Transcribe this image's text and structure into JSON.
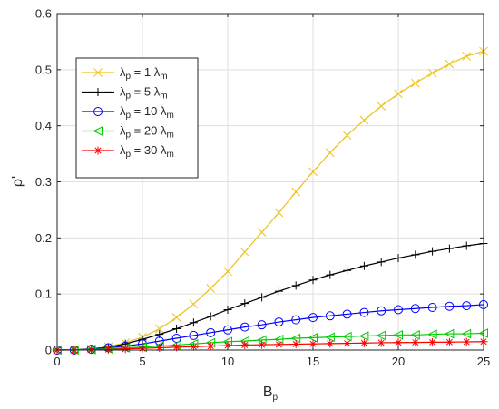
{
  "chart_data": {
    "type": "line",
    "xlabel": "B",
    "xlabel_sub": "p",
    "ylabel": "ρ'",
    "xlim": [
      0,
      25
    ],
    "ylim": [
      0,
      0.6
    ],
    "xticks": [
      0,
      5,
      10,
      15,
      20,
      25
    ],
    "xtick_labels": [
      "0",
      "5",
      "10",
      "15",
      "20",
      "25"
    ],
    "yticks": [
      0,
      0.1,
      0.2,
      0.3,
      0.4,
      0.5,
      0.6
    ],
    "ytick_labels": [
      "0",
      "0.1",
      "0.2",
      "0.3",
      "0.4",
      "0.5",
      "0.6"
    ],
    "grid": true,
    "legend_position": "upper-left",
    "x": [
      0,
      1,
      2,
      3,
      4,
      5,
      6,
      7,
      8,
      9,
      10,
      11,
      12,
      13,
      14,
      15,
      16,
      17,
      18,
      19,
      20,
      21,
      22,
      23,
      24,
      25
    ],
    "series": [
      {
        "name": "λp = 1 λm",
        "legend_parts": {
          "a": "λ",
          "a_sub": "p",
          "mid": " = 1 λ",
          "b_sub": "m"
        },
        "color": "#EDC11A",
        "marker": "x",
        "values": [
          0.0,
          0.0005,
          0.002,
          0.006,
          0.013,
          0.023,
          0.038,
          0.058,
          0.082,
          0.11,
          0.14,
          0.175,
          0.21,
          0.245,
          0.282,
          0.318,
          0.352,
          0.383,
          0.41,
          0.435,
          0.457,
          0.476,
          0.494,
          0.51,
          0.524,
          0.533
        ]
      },
      {
        "name": "λp = 5 λm",
        "legend_parts": {
          "a": "λ",
          "a_sub": "p",
          "mid": " = 5 λ",
          "b_sub": "m"
        },
        "color": "#000000",
        "marker": "+",
        "values": [
          0.0,
          0.0004,
          0.002,
          0.005,
          0.011,
          0.019,
          0.028,
          0.038,
          0.049,
          0.06,
          0.072,
          0.083,
          0.094,
          0.105,
          0.115,
          0.125,
          0.134,
          0.142,
          0.15,
          0.157,
          0.164,
          0.17,
          0.176,
          0.181,
          0.186,
          0.19
        ]
      },
      {
        "name": "λp = 10 λm",
        "legend_parts": {
          "a": "λ",
          "a_sub": "p",
          "mid": " = 10 λ",
          "b_sub": "m"
        },
        "color": "#0000FF",
        "marker": "o",
        "values": [
          0.0,
          0.0003,
          0.0015,
          0.004,
          0.007,
          0.011,
          0.016,
          0.021,
          0.026,
          0.031,
          0.036,
          0.041,
          0.045,
          0.05,
          0.054,
          0.058,
          0.061,
          0.064,
          0.067,
          0.07,
          0.072,
          0.074,
          0.076,
          0.078,
          0.079,
          0.081
        ]
      },
      {
        "name": "λp = 20 λm",
        "legend_parts": {
          "a": "λ",
          "a_sub": "p",
          "mid": " = 20 λ",
          "b_sub": "m"
        },
        "color": "#00CC00",
        "marker": "<",
        "values": [
          0.0,
          0.0002,
          0.001,
          0.002,
          0.004,
          0.005,
          0.007,
          0.009,
          0.011,
          0.013,
          0.015,
          0.016,
          0.018,
          0.019,
          0.021,
          0.022,
          0.023,
          0.024,
          0.025,
          0.026,
          0.027,
          0.027,
          0.028,
          0.029,
          0.029,
          0.03
        ]
      },
      {
        "name": "λp = 30 λm",
        "legend_parts": {
          "a": "λ",
          "a_sub": "p",
          "mid": " = 30 λ",
          "b_sub": "m"
        },
        "color": "#FF0000",
        "marker": "*",
        "values": [
          0.0,
          0.0001,
          0.0005,
          0.001,
          0.002,
          0.003,
          0.004,
          0.005,
          0.006,
          0.007,
          0.008,
          0.009,
          0.0095,
          0.01,
          0.0105,
          0.011,
          0.0115,
          0.012,
          0.0125,
          0.013,
          0.0133,
          0.0136,
          0.0139,
          0.0142,
          0.0145,
          0.015
        ]
      }
    ]
  }
}
